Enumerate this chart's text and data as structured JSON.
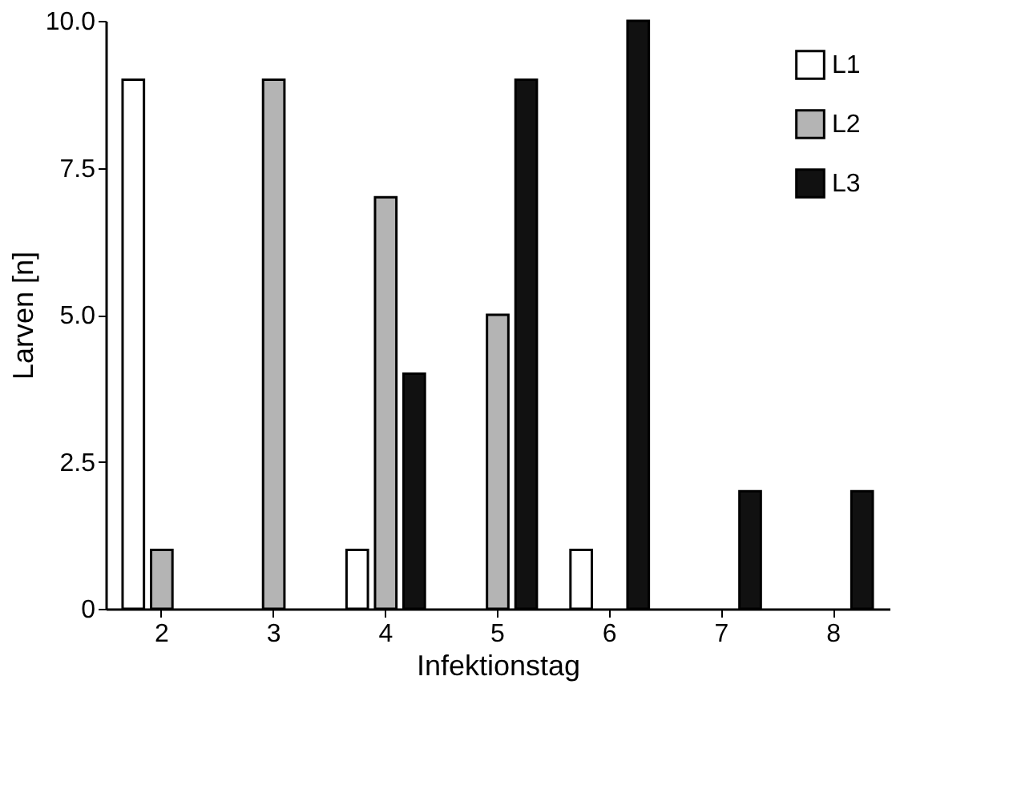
{
  "chart_data": {
    "type": "bar",
    "xlabel": "Infektionstag",
    "ylabel": "Larven [n]",
    "categories": [
      "2",
      "3",
      "4",
      "5",
      "6",
      "7",
      "8"
    ],
    "series": [
      {
        "name": "L1",
        "color": "#ffffff",
        "values": [
          9,
          0,
          1,
          0,
          1,
          0,
          0
        ]
      },
      {
        "name": "L2",
        "color": "#b4b4b4",
        "values": [
          1,
          9,
          7,
          5,
          0,
          0,
          0
        ]
      },
      {
        "name": "L3",
        "color": "#111111",
        "values": [
          0,
          0,
          4,
          9,
          10,
          2,
          2
        ]
      }
    ],
    "ylim": [
      0,
      10
    ],
    "yticks": [
      0,
      2.5,
      {
        "value": 5,
        "label": "5.0"
      },
      7.5,
      {
        "value": 10,
        "label": "10.0"
      }
    ],
    "grid": false,
    "legend": "top right"
  }
}
